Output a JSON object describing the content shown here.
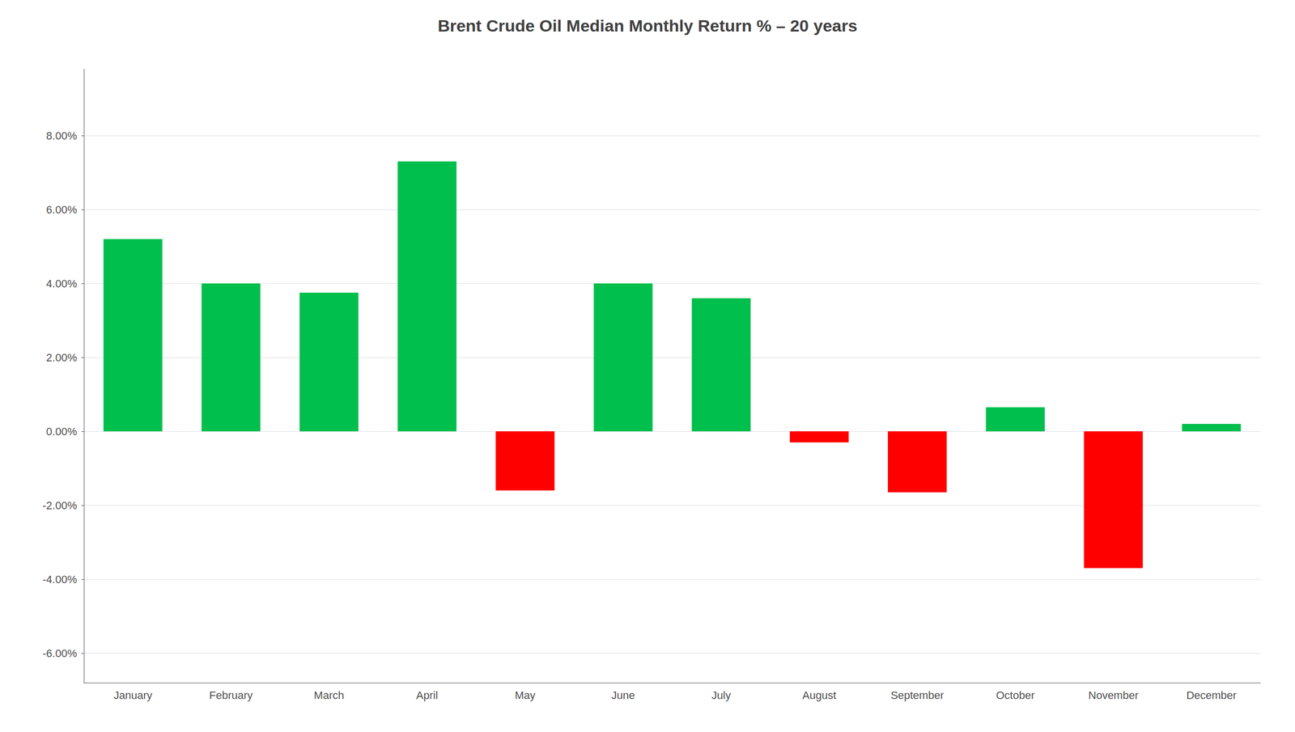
{
  "chart_data": {
    "type": "bar",
    "title": "Brent Crude Oil Median Monthly Return % – 20 years",
    "categories": [
      "January",
      "February",
      "March",
      "April",
      "May",
      "June",
      "July",
      "August",
      "September",
      "October",
      "November",
      "December"
    ],
    "values": [
      5.2,
      4.0,
      3.75,
      7.3,
      -1.6,
      4.0,
      3.6,
      -0.3,
      -1.65,
      0.65,
      -3.7,
      0.2
    ],
    "colors": [
      "#00BF4D",
      "#00BF4D",
      "#00BF4D",
      "#00BF4D",
      "#FF0000",
      "#00BF4D",
      "#00BF4D",
      "#FF0000",
      "#FF0000",
      "#00BF4D",
      "#FF0000",
      "#00BF4D"
    ],
    "ylim": [
      -6.8,
      9.8
    ],
    "yticks": [
      {
        "value": -6.0,
        "label": "-6.00%"
      },
      {
        "value": -4.0,
        "label": "-4.00%"
      },
      {
        "value": -2.0,
        "label": "-2.00%"
      },
      {
        "value": 0.0,
        "label": "0.00%"
      },
      {
        "value": 2.0,
        "label": "2.00%"
      },
      {
        "value": 4.0,
        "label": "4.00%"
      },
      {
        "value": 6.0,
        "label": "6.00%"
      },
      {
        "value": 8.0,
        "label": "8.00%"
      }
    ],
    "grid": true
  }
}
